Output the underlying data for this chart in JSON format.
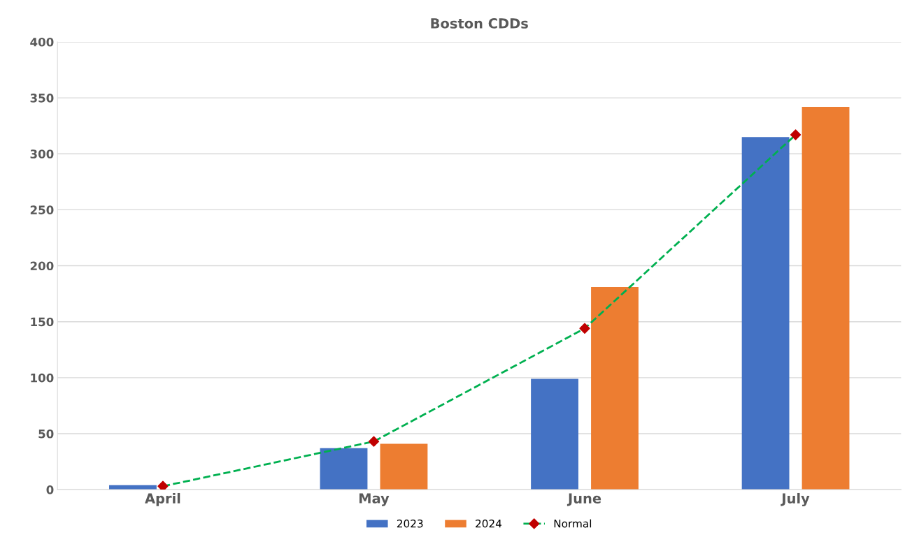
{
  "chart_data": {
    "type": "bar",
    "title": "Boston CDDs",
    "categories": [
      "April",
      "May",
      "June",
      "July"
    ],
    "series": [
      {
        "name": "2023",
        "color": "#4472c4",
        "values": [
          4,
          37,
          99,
          315
        ]
      },
      {
        "name": "2024",
        "color": "#ed7d31",
        "values": [
          null,
          41,
          181,
          342
        ]
      },
      {
        "name": "Normal",
        "type": "line",
        "color": "#00b050",
        "marker": "diamond",
        "colors": [
          "#c00000",
          "#c00000",
          "#c00000",
          "#c00000"
        ],
        "line_style": "dashed",
        "values": [
          3,
          43,
          144,
          317
        ]
      }
    ],
    "ylim": [
      0,
      400
    ],
    "yticks": [
      0,
      50,
      100,
      150,
      200,
      250,
      300,
      350,
      400
    ],
    "grid": "y",
    "legend": "bottom"
  }
}
